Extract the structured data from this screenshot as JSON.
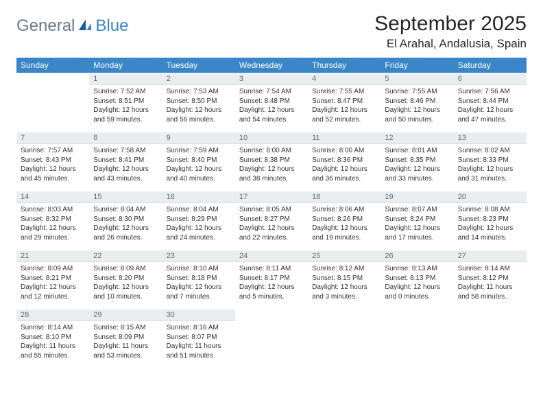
{
  "logo": {
    "text_a": "General",
    "text_b": "Blue"
  },
  "title": "September 2025",
  "location": "El Arahal, Andalusia, Spain",
  "colors": {
    "header_bg": "#3a86c8",
    "header_text": "#ffffff",
    "daynum_bg": "#e9edef",
    "daynum_text": "#5c6a74",
    "body_text": "#333333",
    "page_bg": "#ffffff",
    "logo_a": "#6b7a87",
    "logo_b": "#3a86c8"
  },
  "fonts": {
    "title_size_pt": 22,
    "location_size_pt": 13,
    "header_size_pt": 9,
    "daynum_size_pt": 8,
    "content_size_pt": 7.5
  },
  "day_headers": [
    "Sunday",
    "Monday",
    "Tuesday",
    "Wednesday",
    "Thursday",
    "Friday",
    "Saturday"
  ],
  "weeks": [
    [
      {
        "num": "",
        "sunrise": "",
        "sunset": "",
        "daylight": ""
      },
      {
        "num": "1",
        "sunrise": "Sunrise: 7:52 AM",
        "sunset": "Sunset: 8:51 PM",
        "daylight": "Daylight: 12 hours and 59 minutes."
      },
      {
        "num": "2",
        "sunrise": "Sunrise: 7:53 AM",
        "sunset": "Sunset: 8:50 PM",
        "daylight": "Daylight: 12 hours and 56 minutes."
      },
      {
        "num": "3",
        "sunrise": "Sunrise: 7:54 AM",
        "sunset": "Sunset: 8:48 PM",
        "daylight": "Daylight: 12 hours and 54 minutes."
      },
      {
        "num": "4",
        "sunrise": "Sunrise: 7:55 AM",
        "sunset": "Sunset: 8:47 PM",
        "daylight": "Daylight: 12 hours and 52 minutes."
      },
      {
        "num": "5",
        "sunrise": "Sunrise: 7:55 AM",
        "sunset": "Sunset: 8:46 PM",
        "daylight": "Daylight: 12 hours and 50 minutes."
      },
      {
        "num": "6",
        "sunrise": "Sunrise: 7:56 AM",
        "sunset": "Sunset: 8:44 PM",
        "daylight": "Daylight: 12 hours and 47 minutes."
      }
    ],
    [
      {
        "num": "7",
        "sunrise": "Sunrise: 7:57 AM",
        "sunset": "Sunset: 8:43 PM",
        "daylight": "Daylight: 12 hours and 45 minutes."
      },
      {
        "num": "8",
        "sunrise": "Sunrise: 7:58 AM",
        "sunset": "Sunset: 8:41 PM",
        "daylight": "Daylight: 12 hours and 43 minutes."
      },
      {
        "num": "9",
        "sunrise": "Sunrise: 7:59 AM",
        "sunset": "Sunset: 8:40 PM",
        "daylight": "Daylight: 12 hours and 40 minutes."
      },
      {
        "num": "10",
        "sunrise": "Sunrise: 8:00 AM",
        "sunset": "Sunset: 8:38 PM",
        "daylight": "Daylight: 12 hours and 38 minutes."
      },
      {
        "num": "11",
        "sunrise": "Sunrise: 8:00 AM",
        "sunset": "Sunset: 8:36 PM",
        "daylight": "Daylight: 12 hours and 36 minutes."
      },
      {
        "num": "12",
        "sunrise": "Sunrise: 8:01 AM",
        "sunset": "Sunset: 8:35 PM",
        "daylight": "Daylight: 12 hours and 33 minutes."
      },
      {
        "num": "13",
        "sunrise": "Sunrise: 8:02 AM",
        "sunset": "Sunset: 8:33 PM",
        "daylight": "Daylight: 12 hours and 31 minutes."
      }
    ],
    [
      {
        "num": "14",
        "sunrise": "Sunrise: 8:03 AM",
        "sunset": "Sunset: 8:32 PM",
        "daylight": "Daylight: 12 hours and 29 minutes."
      },
      {
        "num": "15",
        "sunrise": "Sunrise: 8:04 AM",
        "sunset": "Sunset: 8:30 PM",
        "daylight": "Daylight: 12 hours and 26 minutes."
      },
      {
        "num": "16",
        "sunrise": "Sunrise: 8:04 AM",
        "sunset": "Sunset: 8:29 PM",
        "daylight": "Daylight: 12 hours and 24 minutes."
      },
      {
        "num": "17",
        "sunrise": "Sunrise: 8:05 AM",
        "sunset": "Sunset: 8:27 PM",
        "daylight": "Daylight: 12 hours and 22 minutes."
      },
      {
        "num": "18",
        "sunrise": "Sunrise: 8:06 AM",
        "sunset": "Sunset: 8:26 PM",
        "daylight": "Daylight: 12 hours and 19 minutes."
      },
      {
        "num": "19",
        "sunrise": "Sunrise: 8:07 AM",
        "sunset": "Sunset: 8:24 PM",
        "daylight": "Daylight: 12 hours and 17 minutes."
      },
      {
        "num": "20",
        "sunrise": "Sunrise: 8:08 AM",
        "sunset": "Sunset: 8:23 PM",
        "daylight": "Daylight: 12 hours and 14 minutes."
      }
    ],
    [
      {
        "num": "21",
        "sunrise": "Sunrise: 8:09 AM",
        "sunset": "Sunset: 8:21 PM",
        "daylight": "Daylight: 12 hours and 12 minutes."
      },
      {
        "num": "22",
        "sunrise": "Sunrise: 8:09 AM",
        "sunset": "Sunset: 8:20 PM",
        "daylight": "Daylight: 12 hours and 10 minutes."
      },
      {
        "num": "23",
        "sunrise": "Sunrise: 8:10 AM",
        "sunset": "Sunset: 8:18 PM",
        "daylight": "Daylight: 12 hours and 7 minutes."
      },
      {
        "num": "24",
        "sunrise": "Sunrise: 8:11 AM",
        "sunset": "Sunset: 8:17 PM",
        "daylight": "Daylight: 12 hours and 5 minutes."
      },
      {
        "num": "25",
        "sunrise": "Sunrise: 8:12 AM",
        "sunset": "Sunset: 8:15 PM",
        "daylight": "Daylight: 12 hours and 3 minutes."
      },
      {
        "num": "26",
        "sunrise": "Sunrise: 8:13 AM",
        "sunset": "Sunset: 8:13 PM",
        "daylight": "Daylight: 12 hours and 0 minutes."
      },
      {
        "num": "27",
        "sunrise": "Sunrise: 8:14 AM",
        "sunset": "Sunset: 8:12 PM",
        "daylight": "Daylight: 11 hours and 58 minutes."
      }
    ],
    [
      {
        "num": "28",
        "sunrise": "Sunrise: 8:14 AM",
        "sunset": "Sunset: 8:10 PM",
        "daylight": "Daylight: 11 hours and 55 minutes."
      },
      {
        "num": "29",
        "sunrise": "Sunrise: 8:15 AM",
        "sunset": "Sunset: 8:09 PM",
        "daylight": "Daylight: 11 hours and 53 minutes."
      },
      {
        "num": "30",
        "sunrise": "Sunrise: 8:16 AM",
        "sunset": "Sunset: 8:07 PM",
        "daylight": "Daylight: 11 hours and 51 minutes."
      },
      {
        "num": "",
        "sunrise": "",
        "sunset": "",
        "daylight": ""
      },
      {
        "num": "",
        "sunrise": "",
        "sunset": "",
        "daylight": ""
      },
      {
        "num": "",
        "sunrise": "",
        "sunset": "",
        "daylight": ""
      },
      {
        "num": "",
        "sunrise": "",
        "sunset": "",
        "daylight": ""
      }
    ]
  ]
}
